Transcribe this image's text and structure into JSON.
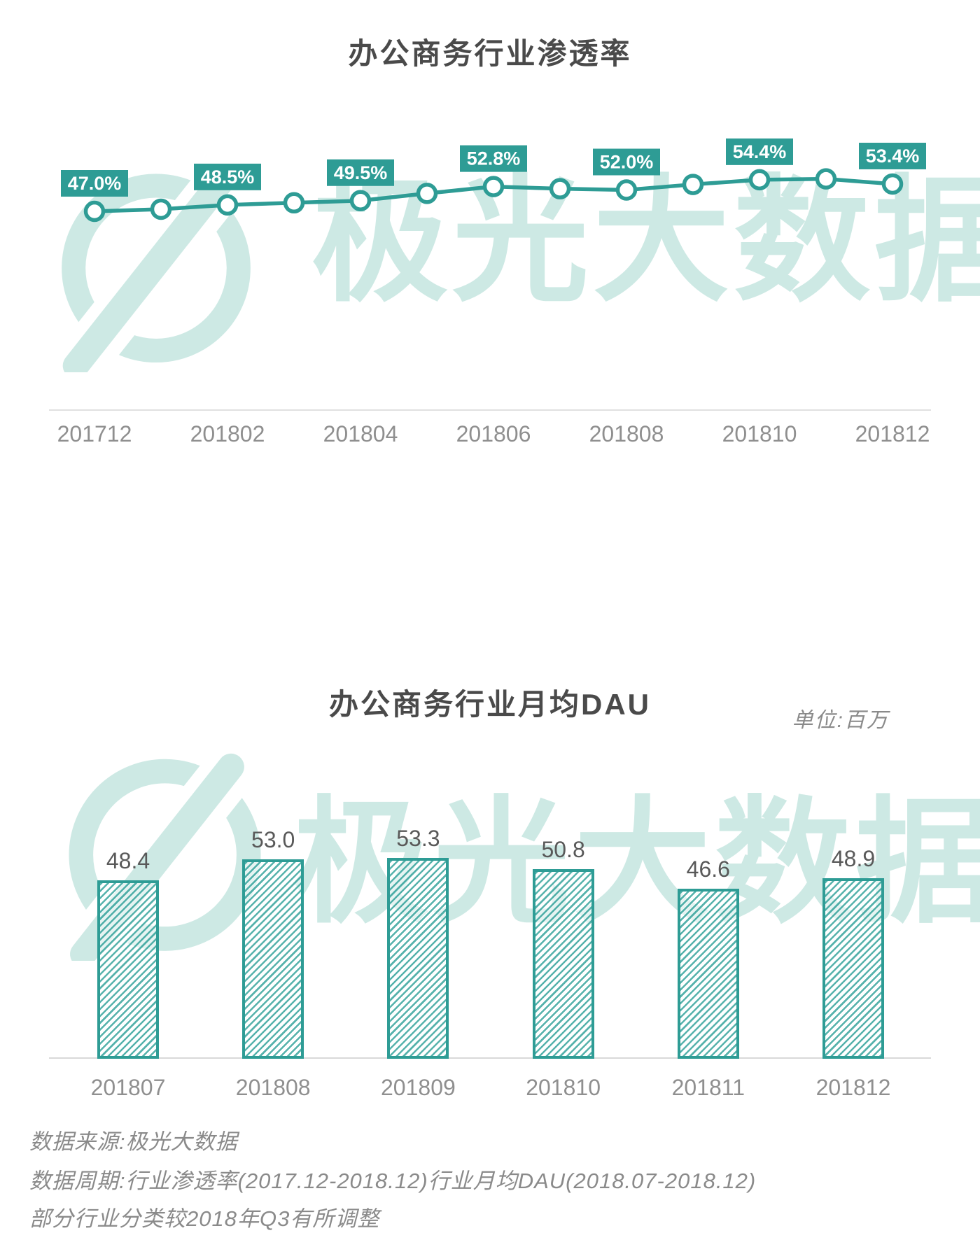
{
  "colors": {
    "accent_teal": "#2E9C95",
    "watermark_teal": "#cde9e4",
    "badge_text": "#ffffff",
    "title_text": "#4a4a4a",
    "axis_text": "#8f8f8f",
    "footer_text": "#8a8a8a"
  },
  "watermark": {
    "text": "极光大数据"
  },
  "chart_data": [
    {
      "type": "line",
      "title": "办公商务行业渗透率",
      "x": [
        "201712",
        "201801",
        "201802",
        "201803",
        "201804",
        "201805",
        "201806",
        "201807",
        "201808",
        "201809",
        "201810",
        "201811",
        "201812"
      ],
      "values": [
        47.0,
        47.5,
        48.5,
        49.0,
        49.5,
        51.2,
        52.8,
        52.3,
        52.0,
        53.3,
        54.4,
        54.6,
        53.4
      ],
      "point_labels": [
        "47.0%",
        null,
        "48.5%",
        null,
        "49.5%",
        null,
        "52.8%",
        null,
        "52.0%",
        null,
        "54.4%",
        null,
        "53.4%"
      ],
      "x_tick_labels": [
        "201712",
        "201802",
        "201804",
        "201806",
        "201808",
        "201810",
        "201812"
      ],
      "unit": "%",
      "ylim": [
        44,
        57
      ],
      "grid": false,
      "legend": false,
      "line_color": "#2E9C95",
      "marker_fill": "#ffffff",
      "label_bg": "#2E9C95",
      "label_text_color": "#ffffff"
    },
    {
      "type": "bar",
      "title": "办公商务行业月均DAU",
      "unit_label": "单位:百万",
      "categories": [
        "201807",
        "201808",
        "201809",
        "201810",
        "201811",
        "201812"
      ],
      "values": [
        48.4,
        53.0,
        53.3,
        50.8,
        46.6,
        48.9
      ],
      "ylim": [
        9.3,
        56
      ],
      "grid": false,
      "legend": false,
      "bar_border_color": "#2E9C95",
      "bar_fill": "hatched-diagonal"
    }
  ],
  "footer": {
    "lines": [
      "数据来源:极光大数据",
      "数据周期:行业渗透率(2017.12-2018.12)行业月均DAU(2018.07-2018.12)",
      "部分行业分类较2018年Q3有所调整"
    ]
  }
}
